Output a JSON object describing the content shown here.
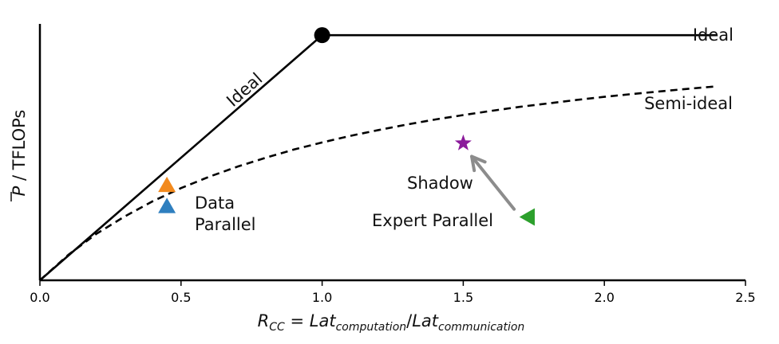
{
  "chart_data": {
    "type": "line",
    "xlabel": {
      "base": "R",
      "sub": "CC",
      "eq": " = ",
      "num": "Lat",
      "num_sub": "computation",
      "slash": "/",
      "den": "Lat",
      "den_sub": "communication"
    },
    "ylabel": {
      "bar_p": "P",
      "rest": " / TFLOPs"
    },
    "xlim": [
      0.0,
      2.5
    ],
    "ylim": [
      0,
      1.0
    ],
    "x_ticks": [
      "0.0",
      "0.5",
      "1.0",
      "1.5",
      "2.0",
      "2.5"
    ],
    "grid": false,
    "series": [
      {
        "name": "Ideal",
        "style": "solid",
        "x": [
          0.0,
          1.0,
          2.4
        ],
        "y": [
          0.0,
          0.93,
          0.93
        ]
      },
      {
        "name": "Semi-ideal",
        "style": "dashed",
        "x": [
          0.0,
          0.1,
          0.2,
          0.3,
          0.4,
          0.5,
          0.6,
          0.7,
          0.8,
          0.9,
          1.0,
          1.1,
          1.2,
          1.3,
          1.4,
          1.5,
          1.6,
          1.7,
          1.8,
          1.9,
          2.0,
          2.1,
          2.2,
          2.3,
          2.4
        ],
        "y": [
          0.0,
          0.096,
          0.176,
          0.242,
          0.3,
          0.35,
          0.393,
          0.431,
          0.465,
          0.496,
          0.523,
          0.548,
          0.57,
          0.591,
          0.61,
          0.627,
          0.643,
          0.658,
          0.671,
          0.684,
          0.696,
          0.707,
          0.717,
          0.727,
          0.736
        ]
      }
    ],
    "markers": [
      {
        "label": "Ideal peak",
        "shape": "circle",
        "color": "#000000",
        "x": 1.0,
        "y": 0.93
      },
      {
        "label": "Data Parallel (orange)",
        "shape": "triangle-up",
        "color": "#f28a1e",
        "x": 0.45,
        "y": 0.36
      },
      {
        "label": "Data Parallel (blue)",
        "shape": "triangle-up",
        "color": "#2f7fbf",
        "x": 0.45,
        "y": 0.28
      },
      {
        "label": "Shadow",
        "shape": "star",
        "color": "#8b1a9b",
        "x": 1.5,
        "y": 0.52
      },
      {
        "label": "Expert Parallel",
        "shape": "triangle-left",
        "color": "#2ca02c",
        "x": 1.73,
        "y": 0.24
      }
    ],
    "arrow": {
      "from": {
        "x": 1.68,
        "y": 0.27
      },
      "to": {
        "x": 1.53,
        "y": 0.47
      },
      "color": "#8c8c8c"
    },
    "annotations": {
      "ideal_slope": "Ideal",
      "ideal_flat": "Ideal",
      "semi_ideal": "Semi-ideal",
      "data_parallel_1": "Data",
      "data_parallel_2": "Parallel",
      "shadow": "Shadow",
      "expert_parallel": "Expert Parallel"
    }
  }
}
